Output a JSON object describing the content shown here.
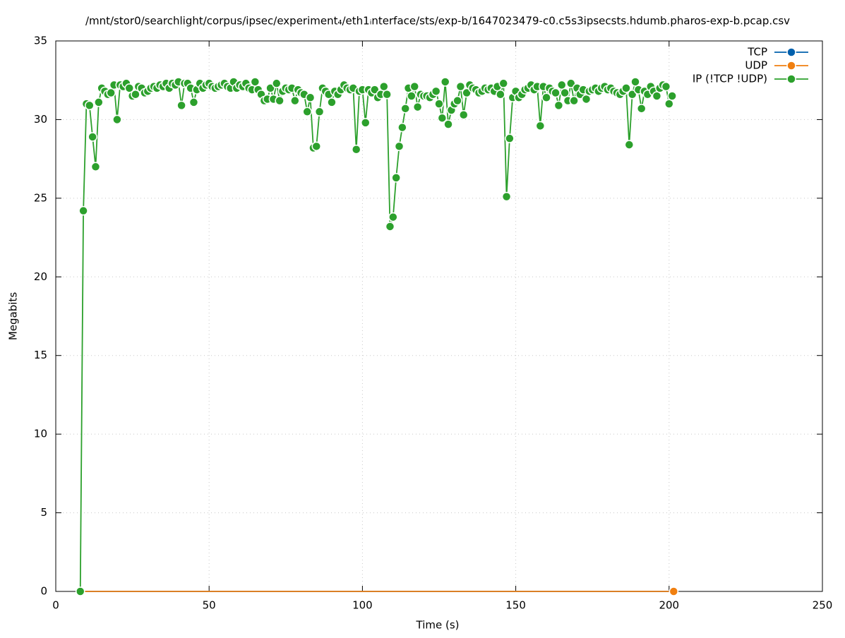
{
  "chart_data": {
    "type": "line",
    "title": "/mnt/stor0/searchlight/corpus/ipsec/experiment₄/eth1ᵢnterface/sts/exp-b/1647023479-c0.c5s3ipsecsts.hdumb.pharos-exp-b.pcap.csv",
    "xlabel": "Time (s)",
    "ylabel": "Megabits",
    "xlim": [
      0,
      250
    ],
    "xticks": [
      0,
      50,
      100,
      150,
      200,
      250
    ],
    "ylim": [
      0,
      35
    ],
    "yticks": [
      0,
      5,
      10,
      15,
      20,
      25,
      30,
      35
    ],
    "grid": true,
    "legend": "top right",
    "series": [
      {
        "name": "TCP",
        "color": "#0060ad",
        "x": [
          8,
          201.5
        ],
        "values": [
          0,
          0
        ]
      },
      {
        "name": "UDP",
        "color": "#f07f10",
        "x": [
          8,
          201.5
        ],
        "values": [
          0,
          0
        ]
      },
      {
        "name": "IP (!TCP  !UDP)",
        "color": "#2ca02c",
        "x": [
          8,
          9,
          10,
          11,
          12,
          13,
          14,
          15,
          16,
          17,
          18,
          19,
          20,
          21,
          22,
          23,
          24,
          25,
          26,
          27,
          28,
          29,
          30,
          31,
          32,
          33,
          34,
          35,
          36,
          37,
          38,
          39,
          40,
          41,
          42,
          43,
          44,
          45,
          46,
          47,
          48,
          49,
          50,
          51,
          52,
          53,
          54,
          55,
          56,
          57,
          58,
          59,
          60,
          61,
          62,
          63,
          64,
          65,
          66,
          67,
          68,
          69,
          70,
          71,
          72,
          73,
          74,
          75,
          76,
          77,
          78,
          79,
          80,
          81,
          82,
          83,
          84,
          85,
          86,
          87,
          88,
          89,
          90,
          91,
          92,
          93,
          94,
          95,
          96,
          97,
          98,
          99,
          100,
          101,
          102,
          103,
          104,
          105,
          106,
          107,
          108,
          109,
          110,
          111,
          112,
          113,
          114,
          115,
          116,
          117,
          118,
          119,
          120,
          121,
          122,
          123,
          124,
          125,
          126,
          127,
          128,
          129,
          130,
          131,
          132,
          133,
          134,
          135,
          136,
          137,
          138,
          139,
          140,
          141,
          142,
          143,
          144,
          145,
          146,
          147,
          148,
          149,
          150,
          151,
          152,
          153,
          154,
          155,
          156,
          157,
          158,
          159,
          160,
          161,
          162,
          163,
          164,
          165,
          166,
          167,
          168,
          169,
          170,
          171,
          172,
          173,
          174,
          175,
          176,
          177,
          178,
          179,
          180,
          181,
          182,
          183,
          184,
          185,
          186,
          187,
          188,
          189,
          190,
          191,
          192,
          193,
          194,
          195,
          196,
          197,
          198,
          199,
          200,
          201
        ],
        "values": [
          0,
          24.2,
          31.0,
          30.9,
          28.9,
          27.0,
          31.1,
          32.0,
          31.8,
          31.6,
          31.7,
          32.2,
          30.0,
          32.2,
          32.1,
          32.3,
          32.0,
          31.5,
          31.6,
          32.1,
          32.0,
          31.7,
          31.8,
          32.0,
          32.1,
          32.0,
          32.2,
          32.1,
          32.3,
          32.0,
          32.3,
          32.2,
          32.4,
          30.9,
          32.3,
          32.3,
          32.0,
          31.1,
          31.9,
          32.3,
          32.0,
          32.2,
          32.3,
          32.1,
          32.0,
          32.1,
          32.2,
          32.3,
          32.1,
          32.0,
          32.4,
          32.0,
          32.2,
          32.1,
          32.3,
          32.0,
          31.9,
          32.4,
          31.9,
          31.6,
          31.2,
          31.3,
          32.0,
          31.3,
          32.3,
          31.2,
          31.8,
          32.0,
          31.9,
          32.0,
          31.2,
          31.9,
          31.7,
          31.6,
          30.5,
          31.4,
          28.2,
          28.3,
          30.5,
          32.0,
          31.8,
          31.6,
          31.1,
          31.8,
          31.6,
          31.9,
          32.2,
          32.0,
          31.9,
          32.0,
          28.1,
          31.8,
          31.9,
          29.8,
          31.9,
          31.7,
          31.9,
          31.4,
          31.6,
          32.1,
          31.6,
          23.2,
          23.8,
          26.3,
          28.3,
          29.5,
          30.7,
          32.0,
          31.5,
          32.1,
          30.8,
          31.6,
          31.5,
          31.5,
          31.4,
          31.6,
          31.8,
          31.0,
          30.1,
          32.4,
          29.7,
          30.6,
          31.0,
          31.2,
          32.1,
          30.3,
          31.7,
          32.2,
          32.0,
          31.9,
          31.7,
          31.8,
          32.0,
          31.9,
          32.0,
          31.8,
          32.1,
          31.6,
          32.3,
          25.1,
          28.8,
          31.4,
          31.8,
          31.4,
          31.6,
          31.9,
          32.0,
          32.2,
          31.9,
          32.1,
          29.6,
          32.1,
          31.4,
          32.0,
          31.8,
          31.7,
          30.9,
          32.2,
          31.7,
          31.2,
          32.3,
          31.2,
          32.0,
          31.6,
          31.9,
          31.3,
          31.8,
          31.9,
          32.0,
          31.8,
          32.0,
          32.1,
          31.9,
          32.0,
          31.8,
          31.7,
          31.6,
          31.8,
          32.0,
          28.4,
          31.6,
          32.4,
          31.9,
          30.7,
          31.8,
          31.6,
          32.1,
          31.8,
          31.5,
          32.0,
          32.2,
          32.1,
          31.0,
          31.5
        ]
      }
    ]
  }
}
